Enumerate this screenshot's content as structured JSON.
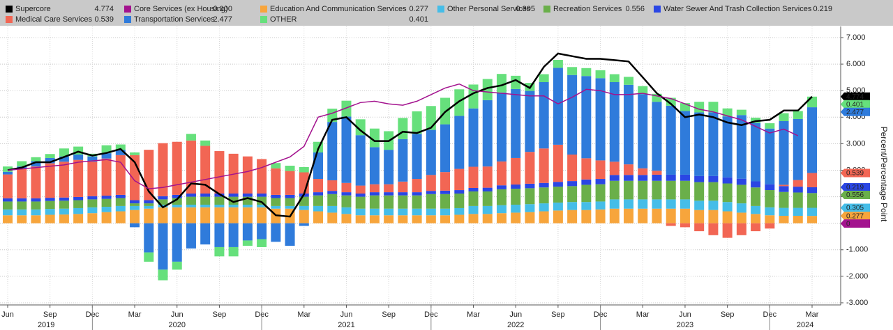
{
  "chart_data": {
    "type": "bar",
    "y_axis_label": "Percent/Percentage Point",
    "categories": [
      "Jun",
      null,
      null,
      "Sep",
      null,
      null,
      "Dec",
      null,
      null,
      "Mar",
      null,
      null,
      "Jun",
      null,
      null,
      "Sep",
      null,
      null,
      "Dec",
      null,
      null,
      "Mar",
      null,
      null,
      "Jun",
      null,
      null,
      "Sep",
      null,
      null,
      "Dec",
      null,
      null,
      "Mar",
      null,
      null,
      "Jun",
      null,
      null,
      "Sep",
      null,
      null,
      "Dec",
      null,
      null,
      "Mar",
      null,
      null,
      "Jun",
      null,
      null,
      "Sep",
      null,
      null,
      "Dec",
      null,
      null,
      "Mar"
    ],
    "years": [
      "2019",
      "2020",
      "2021",
      "2022",
      "2023",
      "2024"
    ],
    "ylim": [
      -3.08,
      7.42
    ],
    "yticks": [
      {
        "value": 7,
        "label": "7.000"
      },
      {
        "value": 6,
        "label": "6.000"
      },
      {
        "value": 5,
        "label": "5.000"
      },
      {
        "value": 4,
        "label": "4.000"
      },
      {
        "value": 3,
        "label": "3.000"
      },
      {
        "value": 2,
        "label": "2.000"
      },
      {
        "value": 1,
        "label": "1.000"
      },
      {
        "value": 0,
        "label": "0.000"
      },
      {
        "value": -1,
        "label": "-1.000"
      },
      {
        "value": -2,
        "label": "-2.000"
      },
      {
        "value": -3,
        "label": "-3.000"
      }
    ],
    "grid": true,
    "series": [
      {
        "name": "Supercore",
        "type": "line",
        "color": "#000000",
        "values": [
          2.0,
          2.1,
          2.3,
          2.3,
          2.5,
          2.7,
          2.55,
          2.65,
          2.8,
          2.3,
          1.2,
          0.6,
          0.9,
          1.5,
          1.45,
          1.1,
          0.8,
          0.95,
          0.8,
          0.3,
          0.25,
          1.1,
          2.8,
          3.9,
          4.0,
          3.5,
          3.1,
          3.1,
          3.45,
          3.4,
          3.6,
          4.2,
          4.6,
          4.9,
          5.1,
          5.2,
          5.4,
          5.1,
          5.9,
          6.4,
          6.3,
          6.2,
          6.2,
          6.15,
          6.1,
          5.5,
          4.9,
          4.5,
          4.0,
          4.1,
          4.0,
          3.8,
          3.7,
          3.85,
          3.9,
          4.25,
          4.25,
          4.774
        ]
      },
      {
        "name": "Core Services (ex Housing)",
        "type": "line",
        "color": "#a3128e",
        "legend_value": {
          "value": 0,
          "label": "0.000"
        },
        "values": [
          2.0,
          2.05,
          2.1,
          2.15,
          2.2,
          2.3,
          2.35,
          2.4,
          2.3,
          1.6,
          1.3,
          1.35,
          1.45,
          1.55,
          1.65,
          1.75,
          1.85,
          1.95,
          2.1,
          2.3,
          2.5,
          2.9,
          4.0,
          4.15,
          4.35,
          4.55,
          4.6,
          4.5,
          4.45,
          4.6,
          4.85,
          5.1,
          5.25,
          5.0,
          4.95,
          4.9,
          4.85,
          4.8,
          4.8,
          4.5,
          4.75,
          5.05,
          5.0,
          4.85,
          4.85,
          4.9,
          4.8,
          4.7,
          4.5,
          4.3,
          4.2,
          4.05,
          3.9,
          3.65,
          3.4,
          3.55,
          3.3,
          null
        ]
      },
      {
        "name": "Education And Communication Services",
        "type": "bar",
        "color": "#f7a53c",
        "values": [
          0.3,
          0.3,
          0.3,
          0.32,
          0.33,
          0.35,
          0.38,
          0.42,
          0.45,
          0.5,
          0.55,
          0.6,
          0.6,
          0.6,
          0.6,
          0.6,
          0.6,
          0.6,
          0.6,
          0.55,
          0.55,
          0.5,
          0.45,
          0.4,
          0.35,
          0.3,
          0.3,
          0.3,
          0.3,
          0.3,
          0.3,
          0.3,
          0.32,
          0.35,
          0.35,
          0.38,
          0.4,
          0.42,
          0.45,
          0.48,
          0.5,
          0.5,
          0.52,
          0.55,
          0.55,
          0.55,
          0.55,
          0.55,
          0.55,
          0.5,
          0.5,
          0.45,
          0.4,
          0.35,
          0.3,
          0.28,
          0.28,
          0.277
        ]
      },
      {
        "name": "Other Personal Services",
        "type": "bar",
        "color": "#45bde8",
        "values": [
          0.22,
          0.22,
          0.22,
          0.22,
          0.22,
          0.22,
          0.22,
          0.2,
          0.2,
          0.15,
          0.1,
          0.1,
          0.1,
          0.1,
          0.1,
          0.1,
          0.1,
          0.1,
          0.1,
          0.1,
          0.1,
          0.15,
          0.2,
          0.25,
          0.25,
          0.25,
          0.25,
          0.25,
          0.25,
          0.25,
          0.25,
          0.25,
          0.25,
          0.3,
          0.3,
          0.3,
          0.3,
          0.3,
          0.3,
          0.3,
          0.3,
          0.3,
          0.3,
          0.35,
          0.35,
          0.35,
          0.35,
          0.35,
          0.35,
          0.35,
          0.35,
          0.35,
          0.35,
          0.3,
          0.3,
          0.3,
          0.3,
          0.305
        ]
      },
      {
        "name": "Recreation Services",
        "type": "bar",
        "color": "#6aaf4a",
        "values": [
          0.3,
          0.3,
          0.3,
          0.3,
          0.3,
          0.3,
          0.3,
          0.3,
          0.3,
          0.1,
          0.1,
          0.2,
          0.25,
          0.3,
          0.3,
          0.3,
          0.3,
          0.3,
          0.3,
          0.3,
          0.3,
          0.35,
          0.4,
          0.45,
          0.45,
          0.45,
          0.5,
          0.5,
          0.5,
          0.5,
          0.55,
          0.55,
          0.55,
          0.55,
          0.55,
          0.6,
          0.6,
          0.6,
          0.6,
          0.6,
          0.6,
          0.65,
          0.65,
          0.7,
          0.7,
          0.7,
          0.7,
          0.7,
          0.7,
          0.7,
          0.7,
          0.7,
          0.7,
          0.7,
          0.65,
          0.6,
          0.58,
          0.556
        ]
      },
      {
        "name": "Water Sewer And Trash Collection Services",
        "type": "bar",
        "color": "#2a46e4",
        "values": [
          0.12,
          0.12,
          0.12,
          0.12,
          0.12,
          0.12,
          0.12,
          0.12,
          0.12,
          0.12,
          0.12,
          0.12,
          0.12,
          0.12,
          0.12,
          0.12,
          0.12,
          0.12,
          0.12,
          0.12,
          0.12,
          0.12,
          0.12,
          0.12,
          0.12,
          0.12,
          0.12,
          0.12,
          0.12,
          0.12,
          0.12,
          0.13,
          0.13,
          0.13,
          0.14,
          0.15,
          0.16,
          0.17,
          0.17,
          0.18,
          0.19,
          0.2,
          0.2,
          0.22,
          0.22,
          0.22,
          0.23,
          0.23,
          0.23,
          0.23,
          0.23,
          0.23,
          0.23,
          0.23,
          0.22,
          0.22,
          0.22,
          0.219
        ]
      },
      {
        "name": "Medical Care Services",
        "type": "bar",
        "color": "#f26654",
        "values": [
          0.9,
          1.1,
          1.2,
          1.3,
          1.35,
          1.4,
          1.3,
          1.4,
          1.5,
          1.7,
          1.9,
          2.0,
          2.0,
          2.0,
          1.8,
          1.6,
          1.5,
          1.4,
          1.3,
          1.0,
          0.9,
          0.8,
          0.5,
          0.4,
          0.35,
          0.3,
          0.3,
          0.3,
          0.4,
          0.5,
          0.6,
          0.7,
          0.8,
          0.8,
          0.8,
          0.9,
          1.0,
          1.2,
          1.3,
          1.4,
          1.0,
          0.8,
          0.7,
          0.5,
          0.4,
          0.25,
          0.15,
          -0.1,
          -0.15,
          -0.3,
          -0.45,
          -0.55,
          -0.45,
          -0.3,
          -0.2,
          0.05,
          0.25,
          0.539
        ]
      },
      {
        "name": "Transportation Services",
        "type": "bar",
        "color": "#2f7bdb",
        "values": [
          0.1,
          0.1,
          0.2,
          0.2,
          0.2,
          0.2,
          0.2,
          0.2,
          0.2,
          -0.15,
          -1.1,
          -1.75,
          -1.45,
          -0.95,
          -0.8,
          -0.9,
          -0.9,
          -0.65,
          -0.6,
          -0.7,
          -0.85,
          -0.1,
          1.0,
          2.2,
          2.5,
          1.9,
          1.4,
          1.3,
          1.6,
          1.7,
          1.7,
          1.8,
          2.0,
          2.2,
          2.5,
          2.6,
          2.6,
          2.3,
          2.5,
          2.9,
          3.0,
          3.1,
          3.1,
          3.0,
          3.0,
          2.8,
          2.6,
          2.6,
          2.4,
          2.4,
          2.4,
          2.3,
          2.4,
          2.2,
          2.1,
          2.4,
          2.3,
          2.477
        ]
      },
      {
        "name": "OTHER",
        "type": "bar",
        "color": "#66e07c",
        "values": [
          0.2,
          0.2,
          0.15,
          0.15,
          0.3,
          0.3,
          0.1,
          0.3,
          0.2,
          0.1,
          -0.35,
          -0.4,
          -0.3,
          0.25,
          0.2,
          -0.35,
          -0.35,
          -0.2,
          -0.3,
          0.2,
          0.2,
          0.2,
          0.4,
          0.5,
          0.6,
          0.6,
          0.7,
          0.7,
          0.8,
          0.85,
          0.9,
          1.0,
          1.0,
          0.9,
          0.8,
          0.7,
          0.5,
          0.3,
          0.3,
          0.3,
          0.3,
          0.3,
          0.3,
          0.3,
          0.3,
          0.3,
          0.3,
          0.3,
          0.3,
          0.4,
          0.4,
          0.3,
          0.2,
          0.2,
          0.2,
          0.3,
          0.3,
          0.401
        ]
      }
    ]
  }
}
